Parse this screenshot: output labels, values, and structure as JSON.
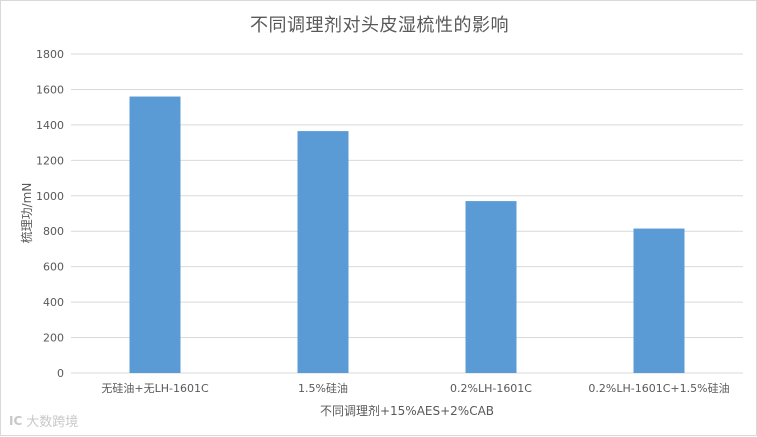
{
  "chart_data": {
    "type": "bar",
    "title": "不同调理剂对头皮湿梳性的影响",
    "xlabel": "不同调理剂+15%AES+2%CAB",
    "ylabel": "梳理功/mN",
    "categories": [
      "无硅油+无LH-1601C",
      "1.5%硅油",
      "0.2%LH-1601C",
      "0.2%LH-1601C+1.5%硅油"
    ],
    "series": [
      {
        "values": [
          1560,
          1365,
          970,
          815
        ]
      }
    ],
    "ylim": [
      0,
      1800
    ],
    "yticks": [
      0,
      200,
      400,
      600,
      800,
      1000,
      1200,
      1400,
      1600,
      1800
    ],
    "grid": true,
    "legend": "none",
    "bar_color": "#5b9bd5",
    "grid_color": "#d9d9d9"
  },
  "watermark": {
    "logo": "IC",
    "text": "大数跨境"
  }
}
